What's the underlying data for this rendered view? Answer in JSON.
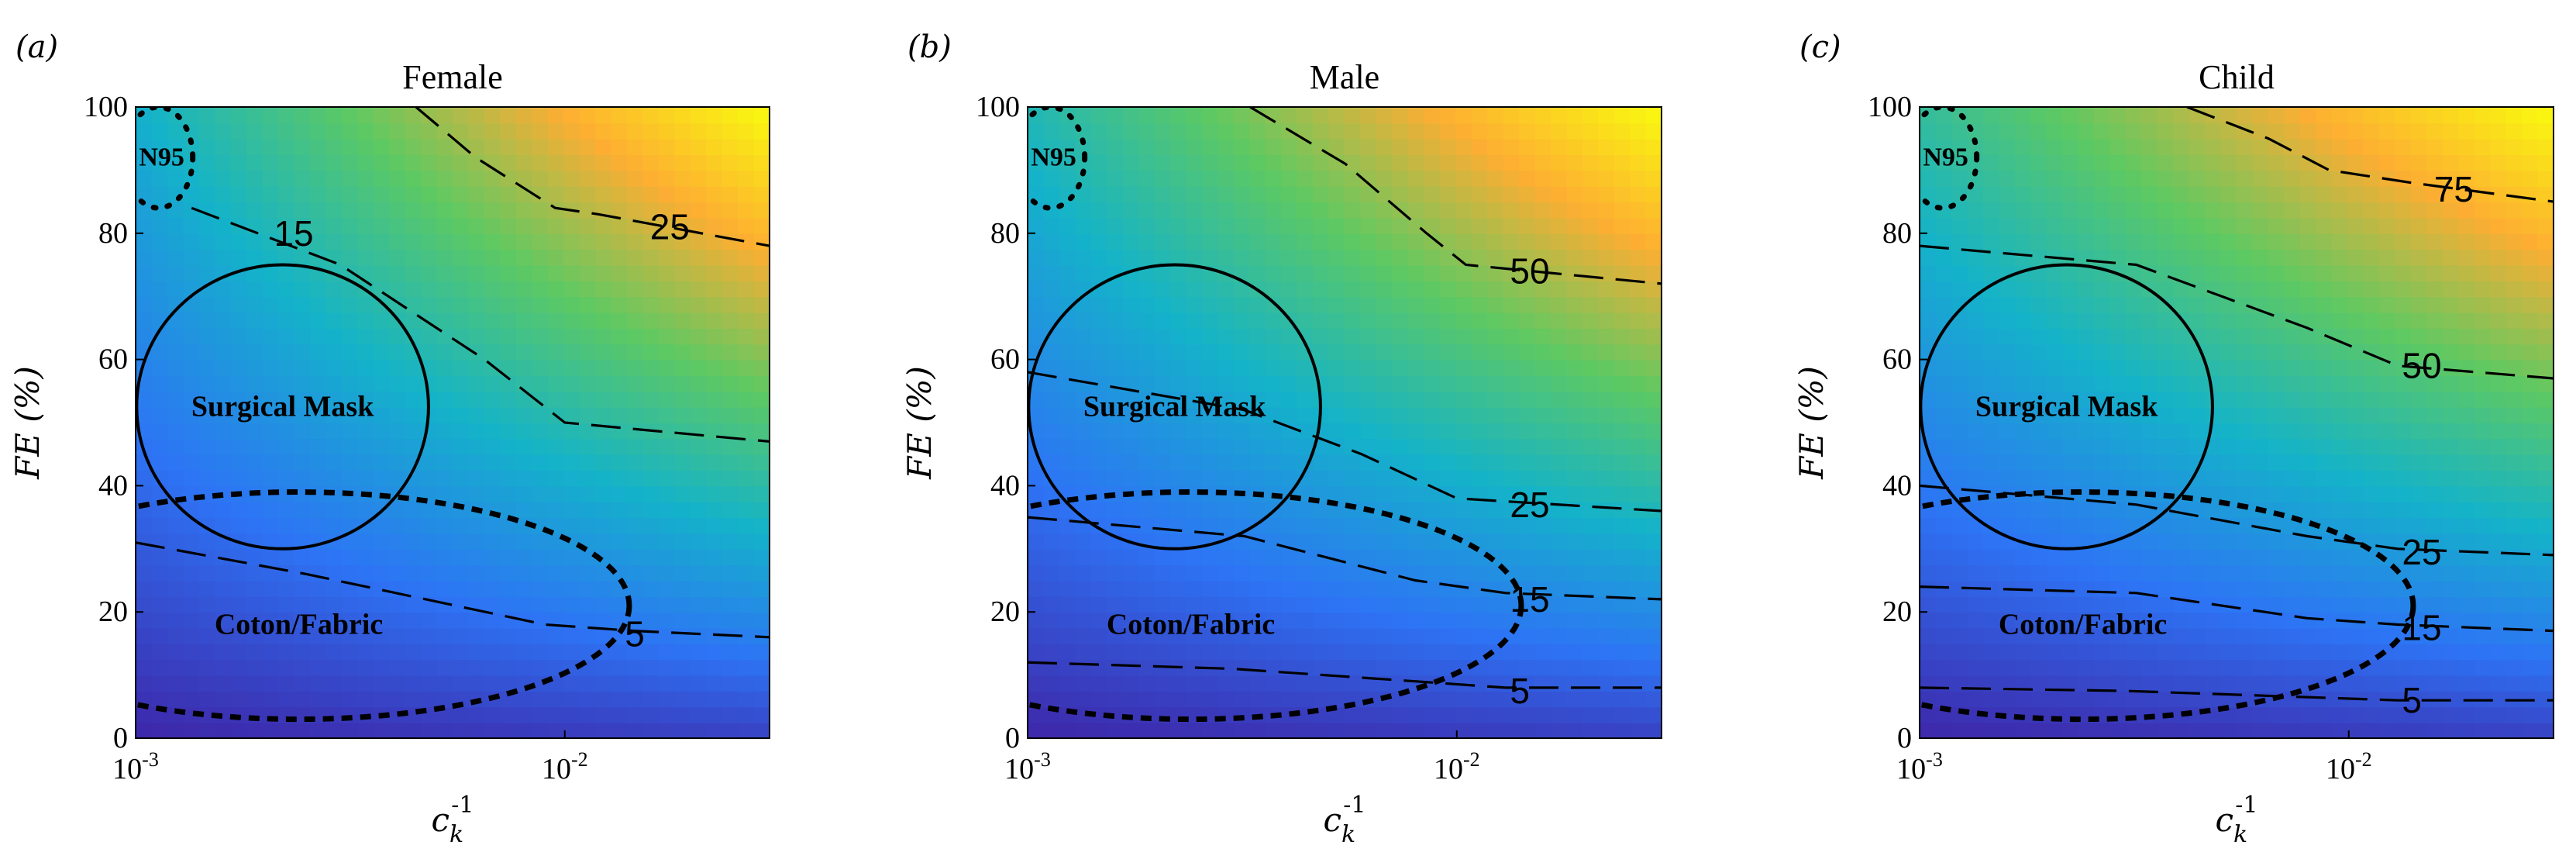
{
  "colors": {
    "low": "#3e26a8",
    "mid1": "#2d74f5",
    "mid2": "#14b3c9",
    "mid3": "#5ec962",
    "high1": "#fdae32",
    "high2": "#f9fb0e"
  },
  "chart_data": [
    {
      "type": "contour",
      "panel_label": "(a)",
      "title": "Female",
      "xlabel": "c_k^-1",
      "ylabel": "FE (%)",
      "xscale": "log",
      "xlim": [
        0.001,
        0.03
      ],
      "ylim": [
        0,
        100
      ],
      "xticks": [
        {
          "value": 0.001,
          "label": "10^-3"
        },
        {
          "value": 0.01,
          "label": "10^-2"
        }
      ],
      "yticks": [
        0,
        20,
        40,
        60,
        80,
        100
      ],
      "surface_corners": {
        "bl": 0,
        "br": 0.05,
        "tl": 0.35,
        "tr": 1.0
      },
      "contours": [
        {
          "label": "5",
          "points": [
            [
              0.001,
              31
            ],
            [
              0.0025,
              26
            ],
            [
              0.009,
              18
            ],
            [
              0.0145,
              17
            ],
            [
              0.03,
              16
            ]
          ]
        },
        {
          "label": "15",
          "points": [
            [
              0.00135,
              84
            ],
            [
              0.003,
              75
            ],
            [
              0.0065,
              60
            ],
            [
              0.01,
              50
            ],
            [
              0.03,
              47
            ]
          ]
        },
        {
          "label": "25",
          "points": [
            [
              0.0045,
              100
            ],
            [
              0.0062,
              92
            ],
            [
              0.0095,
              84
            ],
            [
              0.012,
              83
            ],
            [
              0.03,
              78
            ]
          ]
        }
      ],
      "contour_labels": [
        {
          "label": "5",
          "x": 0.0138,
          "y": 16.5
        },
        {
          "label": "15",
          "x": 0.0021,
          "y": 80
        },
        {
          "label": "25",
          "x": 0.0158,
          "y": 81
        }
      ],
      "regions": [
        {
          "name": "N95",
          "style": "dotted",
          "cx": 0.00113,
          "cy": 92,
          "rx_dec": 0.08,
          "ry": 8,
          "label_x": 0.00115,
          "label_y": 92
        },
        {
          "name": "Surgical Mask",
          "style": "solid",
          "cx": 0.0022,
          "cy": 52.5,
          "rx_dec": 0.34,
          "ry": 22.5,
          "label_x": 0.0022,
          "label_y": 52.5
        },
        {
          "name": "Coton/Fabric",
          "style": "dashed",
          "cx": 0.0024,
          "cy": 21,
          "rx_dec": 0.77,
          "ry": 18,
          "label_x": 0.0024,
          "label_y": 18
        }
      ]
    },
    {
      "type": "contour",
      "panel_label": "(b)",
      "title": "Male",
      "xlabel": "c_k^-1",
      "ylabel": "FE (%)",
      "xscale": "log",
      "xlim": [
        0.001,
        0.03
      ],
      "ylim": [
        0,
        100
      ],
      "xticks": [
        {
          "value": 0.001,
          "label": "10^-3"
        },
        {
          "value": 0.01,
          "label": "10^-2"
        }
      ],
      "yticks": [
        0,
        20,
        40,
        60,
        80,
        100
      ],
      "surface_corners": {
        "bl": 0,
        "br": 0.05,
        "tl": 0.4,
        "tr": 1.0
      },
      "contours": [
        {
          "label": "5",
          "points": [
            [
              0.001,
              12
            ],
            [
              0.003,
              11
            ],
            [
              0.008,
              9
            ],
            [
              0.013,
              8
            ],
            [
              0.03,
              8
            ]
          ]
        },
        {
          "label": "15",
          "points": [
            [
              0.001,
              35
            ],
            [
              0.0032,
              32
            ],
            [
              0.008,
              25
            ],
            [
              0.013,
              23
            ],
            [
              0.03,
              22
            ]
          ]
        },
        {
          "label": "25",
          "points": [
            [
              0.001,
              58
            ],
            [
              0.0032,
              52
            ],
            [
              0.006,
              45
            ],
            [
              0.01,
              38
            ],
            [
              0.03,
              36
            ]
          ]
        },
        {
          "label": "50",
          "points": [
            [
              0.0033,
              100
            ],
            [
              0.0055,
              91
            ],
            [
              0.0085,
              80
            ],
            [
              0.0105,
              75
            ],
            [
              0.03,
              72
            ]
          ]
        }
      ],
      "contour_labels": [
        {
          "label": "5",
          "x": 0.0133,
          "y": 7.5
        },
        {
          "label": "15",
          "x": 0.0133,
          "y": 22
        },
        {
          "label": "25",
          "x": 0.0133,
          "y": 37
        },
        {
          "label": "50",
          "x": 0.0133,
          "y": 74
        }
      ],
      "regions": [
        {
          "name": "N95",
          "style": "dotted",
          "cx": 0.00113,
          "cy": 92,
          "rx_dec": 0.08,
          "ry": 8,
          "label_x": 0.00115,
          "label_y": 92
        },
        {
          "name": "Surgical Mask",
          "style": "solid",
          "cx": 0.0022,
          "cy": 52.5,
          "rx_dec": 0.34,
          "ry": 22.5,
          "label_x": 0.0022,
          "label_y": 52.5
        },
        {
          "name": "Coton/Fabric",
          "style": "dashed",
          "cx": 0.0024,
          "cy": 21,
          "rx_dec": 0.77,
          "ry": 18,
          "label_x": 0.0024,
          "label_y": 18
        }
      ]
    },
    {
      "type": "contour",
      "panel_label": "(c)",
      "title": "Child",
      "xlabel": "c_k^-1",
      "ylabel": "FE (%)",
      "xscale": "log",
      "xlim": [
        0.001,
        0.03
      ],
      "ylim": [
        0,
        100
      ],
      "xticks": [
        {
          "value": 0.001,
          "label": "10^-3"
        },
        {
          "value": 0.01,
          "label": "10^-2"
        }
      ],
      "yticks": [
        0,
        20,
        40,
        60,
        80,
        100
      ],
      "surface_corners": {
        "bl": 0,
        "br": 0.05,
        "tl": 0.45,
        "tr": 1.0
      },
      "contours": [
        {
          "label": "5",
          "points": [
            [
              0.001,
              8
            ],
            [
              0.003,
              7.5
            ],
            [
              0.008,
              6.5
            ],
            [
              0.013,
              6
            ],
            [
              0.03,
              6
            ]
          ]
        },
        {
          "label": "15",
          "points": [
            [
              0.001,
              24
            ],
            [
              0.0032,
              23
            ],
            [
              0.008,
              19
            ],
            [
              0.013,
              18
            ],
            [
              0.03,
              17
            ]
          ]
        },
        {
          "label": "25",
          "points": [
            [
              0.001,
              40
            ],
            [
              0.0032,
              37
            ],
            [
              0.008,
              32
            ],
            [
              0.013,
              30
            ],
            [
              0.03,
              29
            ]
          ]
        },
        {
          "label": "50",
          "points": [
            [
              0.001,
              78
            ],
            [
              0.0032,
              75
            ],
            [
              0.008,
              65
            ],
            [
              0.013,
              59
            ],
            [
              0.03,
              57
            ]
          ]
        },
        {
          "label": "75",
          "points": [
            [
              0.0042,
              100
            ],
            [
              0.0065,
              95
            ],
            [
              0.009,
              90
            ],
            [
              0.014,
              88
            ],
            [
              0.03,
              85
            ]
          ]
        }
      ],
      "contour_labels": [
        {
          "label": "5",
          "x": 0.0133,
          "y": 6
        },
        {
          "label": "15",
          "x": 0.0133,
          "y": 17.5
        },
        {
          "label": "25",
          "x": 0.0133,
          "y": 29.5
        },
        {
          "label": "50",
          "x": 0.0133,
          "y": 59
        },
        {
          "label": "75",
          "x": 0.0158,
          "y": 87
        }
      ],
      "regions": [
        {
          "name": "N95",
          "style": "dotted",
          "cx": 0.00113,
          "cy": 92,
          "rx_dec": 0.08,
          "ry": 8,
          "label_x": 0.00115,
          "label_y": 92
        },
        {
          "name": "Surgical Mask",
          "style": "solid",
          "cx": 0.0022,
          "cy": 52.5,
          "rx_dec": 0.34,
          "ry": 22.5,
          "label_x": 0.0022,
          "label_y": 52.5
        },
        {
          "name": "Coton/Fabric",
          "style": "dashed",
          "cx": 0.0024,
          "cy": 21,
          "rx_dec": 0.77,
          "ry": 18,
          "label_x": 0.0024,
          "label_y": 18
        }
      ]
    }
  ]
}
